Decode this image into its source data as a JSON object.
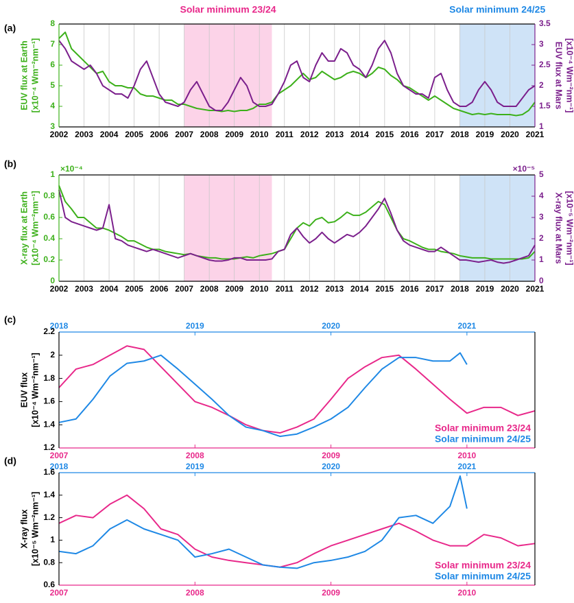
{
  "chart_data": [
    {
      "type": "line",
      "panel_label": "(a)",
      "ylabel": [
        "EUV flux at Earth",
        "[x10⁻⁴ Wm⁻²nm⁻¹]"
      ],
      "y2label": [
        "EUV flux at Mars",
        "[x10⁻⁴ Wm⁻²nm⁻¹]"
      ],
      "xlim": [
        2002,
        2021
      ],
      "xticks": [
        2002,
        2003,
        2004,
        2005,
        2006,
        2007,
        2008,
        2009,
        2010,
        2011,
        2012,
        2013,
        2014,
        2015,
        2016,
        2017,
        2018,
        2019,
        2020,
        2021
      ],
      "ylim": [
        3,
        8
      ],
      "yticks": [
        3,
        4,
        5,
        6,
        7,
        8
      ],
      "y2lim": [
        1,
        3.5
      ],
      "y2ticks": [
        1,
        1.5,
        2,
        2.5,
        3,
        3.5
      ],
      "grid": true,
      "shaded": [
        {
          "from": 2007,
          "to": 2010.5,
          "color": "#fcd3e8",
          "label": "Solar minimum 23/24",
          "label_color": "#e8288a"
        },
        {
          "from": 2018,
          "to": 2021,
          "color": "#cfe3f7",
          "label": "Solar minimum 24/25",
          "label_color": "#1e88e5"
        }
      ],
      "x": [
        2002,
        2002.25,
        2002.5,
        2002.75,
        2003,
        2003.25,
        2003.5,
        2003.75,
        2004,
        2004.25,
        2004.5,
        2004.75,
        2005,
        2005.25,
        2005.5,
        2005.75,
        2006,
        2006.25,
        2006.5,
        2006.75,
        2007,
        2007.25,
        2007.5,
        2007.75,
        2008,
        2008.25,
        2008.5,
        2008.75,
        2009,
        2009.25,
        2009.5,
        2009.75,
        2010,
        2010.25,
        2010.5,
        2010.75,
        2011,
        2011.25,
        2011.5,
        2011.75,
        2012,
        2012.25,
        2012.5,
        2012.75,
        2013,
        2013.25,
        2013.5,
        2013.75,
        2014,
        2014.25,
        2014.5,
        2014.75,
        2015,
        2015.25,
        2015.5,
        2015.75,
        2016,
        2016.25,
        2016.5,
        2016.75,
        2017,
        2017.25,
        2017.5,
        2017.75,
        2018,
        2018.25,
        2018.5,
        2018.75,
        2019,
        2019.25,
        2019.5,
        2019.75,
        2020,
        2020.25,
        2020.5,
        2020.75,
        2021
      ],
      "series": [
        {
          "color": "#3cb01a",
          "values": [
            7.3,
            7.6,
            6.8,
            6.5,
            6.2,
            5.9,
            5.6,
            5.7,
            5.2,
            5.0,
            5.0,
            4.9,
            4.9,
            4.6,
            4.5,
            4.5,
            4.4,
            4.3,
            4.3,
            4.1,
            4.1,
            4.0,
            3.9,
            3.85,
            3.8,
            3.8,
            3.75,
            3.8,
            3.75,
            3.8,
            3.8,
            3.9,
            4.1,
            4.1,
            4.2,
            4.6,
            4.8,
            5.0,
            5.3,
            5.6,
            5.3,
            5.4,
            5.7,
            5.5,
            5.3,
            5.4,
            5.6,
            5.7,
            5.6,
            5.4,
            5.6,
            5.9,
            5.8,
            5.5,
            5.3,
            5.0,
            4.9,
            4.7,
            4.5,
            4.3,
            4.5,
            4.3,
            4.1,
            3.9,
            3.8,
            3.7,
            3.6,
            3.65,
            3.6,
            3.65,
            3.6,
            3.6,
            3.6,
            3.55,
            3.6,
            3.8,
            4.2
          ]
        },
        {
          "color": "#7b1f8c",
          "axis": "y2",
          "values": [
            3.1,
            2.9,
            2.6,
            2.5,
            2.4,
            2.5,
            2.3,
            2.0,
            1.9,
            1.8,
            1.8,
            1.7,
            2.0,
            2.4,
            2.6,
            2.2,
            1.8,
            1.6,
            1.55,
            1.5,
            1.6,
            1.9,
            2.1,
            1.8,
            1.5,
            1.4,
            1.4,
            1.6,
            1.9,
            2.2,
            2.0,
            1.6,
            1.5,
            1.5,
            1.55,
            1.8,
            2.1,
            2.5,
            2.6,
            2.2,
            2.1,
            2.5,
            2.8,
            2.6,
            2.6,
            2.9,
            2.8,
            2.5,
            2.4,
            2.2,
            2.5,
            2.9,
            3.1,
            2.8,
            2.3,
            2.0,
            1.9,
            1.8,
            1.8,
            1.7,
            2.2,
            2.3,
            1.9,
            1.6,
            1.5,
            1.5,
            1.6,
            1.9,
            2.1,
            1.9,
            1.6,
            1.5,
            1.5,
            1.5,
            1.7,
            1.9,
            2.0
          ]
        }
      ]
    },
    {
      "type": "line",
      "panel_label": "(b)",
      "ylabel": [
        "X-ray flux at Earth",
        "[x10⁻⁴ Wm⁻²nm⁻¹]"
      ],
      "y2label": [
        "X-ray flux at Mars",
        "[x10⁻⁵ Wm⁻²nm⁻¹]"
      ],
      "y_multiplier": "×10⁻⁴",
      "y2_multiplier": "×10⁻⁵",
      "xlim": [
        2002,
        2021
      ],
      "xticks": [
        2002,
        2003,
        2004,
        2005,
        2006,
        2007,
        2008,
        2009,
        2010,
        2011,
        2012,
        2013,
        2014,
        2015,
        2016,
        2017,
        2018,
        2019,
        2020,
        2021
      ],
      "ylim": [
        0,
        1
      ],
      "yticks": [
        0,
        0.2,
        0.4,
        0.6,
        0.8,
        1
      ],
      "y2lim": [
        0,
        5
      ],
      "y2ticks": [
        0,
        1,
        2,
        3,
        4,
        5
      ],
      "grid": true,
      "shaded": [
        {
          "from": 2007,
          "to": 2010.5,
          "color": "#fcd3e8"
        },
        {
          "from": 2018,
          "to": 2021,
          "color": "#cfe3f7"
        }
      ],
      "x": [
        2002,
        2002.25,
        2002.5,
        2002.75,
        2003,
        2003.25,
        2003.5,
        2003.75,
        2004,
        2004.25,
        2004.5,
        2004.75,
        2005,
        2005.25,
        2005.5,
        2005.75,
        2006,
        2006.25,
        2006.5,
        2006.75,
        2007,
        2007.25,
        2007.5,
        2007.75,
        2008,
        2008.25,
        2008.5,
        2008.75,
        2009,
        2009.25,
        2009.5,
        2009.75,
        2010,
        2010.25,
        2010.5,
        2010.75,
        2011,
        2011.25,
        2011.5,
        2011.75,
        2012,
        2012.25,
        2012.5,
        2012.75,
        2013,
        2013.25,
        2013.5,
        2013.75,
        2014,
        2014.25,
        2014.5,
        2014.75,
        2015,
        2015.25,
        2015.5,
        2015.75,
        2016,
        2016.25,
        2016.5,
        2016.75,
        2017,
        2017.25,
        2017.5,
        2017.75,
        2018,
        2018.25,
        2018.5,
        2018.75,
        2019,
        2019.25,
        2019.5,
        2019.75,
        2020,
        2020.25,
        2020.5,
        2020.75,
        2021
      ],
      "series": [
        {
          "color": "#3cb01a",
          "values": [
            0.9,
            0.75,
            0.68,
            0.6,
            0.6,
            0.55,
            0.5,
            0.5,
            0.48,
            0.45,
            0.42,
            0.38,
            0.38,
            0.35,
            0.32,
            0.3,
            0.3,
            0.28,
            0.27,
            0.26,
            0.25,
            0.26,
            0.24,
            0.23,
            0.22,
            0.22,
            0.21,
            0.21,
            0.21,
            0.22,
            0.23,
            0.22,
            0.24,
            0.25,
            0.26,
            0.28,
            0.3,
            0.4,
            0.5,
            0.55,
            0.52,
            0.58,
            0.6,
            0.55,
            0.56,
            0.6,
            0.65,
            0.62,
            0.62,
            0.65,
            0.7,
            0.75,
            0.72,
            0.6,
            0.48,
            0.4,
            0.38,
            0.35,
            0.32,
            0.3,
            0.3,
            0.28,
            0.27,
            0.26,
            0.24,
            0.23,
            0.22,
            0.22,
            0.22,
            0.21,
            0.21,
            0.21,
            0.21,
            0.21,
            0.21,
            0.22,
            0.28
          ]
        },
        {
          "color": "#7b1f8c",
          "axis": "y2",
          "values": [
            4.3,
            3.0,
            2.8,
            2.7,
            2.6,
            2.5,
            2.4,
            2.5,
            3.6,
            2.0,
            1.9,
            1.7,
            1.6,
            1.5,
            1.4,
            1.5,
            1.4,
            1.3,
            1.2,
            1.1,
            1.2,
            1.3,
            1.2,
            1.1,
            1.0,
            0.95,
            0.95,
            1.0,
            1.1,
            1.1,
            1.0,
            1.0,
            1.0,
            1.0,
            1.05,
            1.4,
            1.5,
            2.2,
            2.5,
            2.1,
            1.8,
            2.0,
            2.3,
            2.0,
            1.8,
            2.0,
            2.2,
            2.1,
            2.3,
            2.6,
            3.0,
            3.4,
            3.9,
            3.2,
            2.4,
            1.9,
            1.7,
            1.6,
            1.5,
            1.4,
            1.4,
            1.6,
            1.4,
            1.2,
            1.0,
            1.0,
            0.95,
            0.9,
            0.95,
            1.0,
            0.9,
            0.85,
            0.9,
            1.0,
            1.1,
            1.2,
            1.7
          ]
        }
      ]
    },
    {
      "type": "line",
      "panel_label": "(c)",
      "ylabel": [
        "EUV flux",
        "[x10⁻⁴ Wm⁻²nm⁻¹]"
      ],
      "xlim": [
        2007,
        2010.5
      ],
      "xticks": [
        2007,
        2008,
        2009,
        2010
      ],
      "x2lim": [
        2018,
        2021.5
      ],
      "x2ticks": [
        2018,
        2019,
        2020,
        2021
      ],
      "ylim": [
        1.2,
        2.2
      ],
      "yticks": [
        1.2,
        1.4,
        1.6,
        1.8,
        2,
        2.2
      ],
      "legend": "lower right",
      "series": [
        {
          "name": "Solar minimum 23/24",
          "color": "#e8288a",
          "x": [
            2007,
            2007.125,
            2007.25,
            2007.375,
            2007.5,
            2007.625,
            2007.75,
            2007.875,
            2008,
            2008.125,
            2008.25,
            2008.375,
            2008.5,
            2008.625,
            2008.75,
            2008.875,
            2009,
            2009.125,
            2009.25,
            2009.375,
            2009.5,
            2009.625,
            2009.75,
            2009.875,
            2010,
            2010.125,
            2010.25,
            2010.375,
            2010.5
          ],
          "values": [
            1.72,
            1.88,
            1.92,
            2.0,
            2.08,
            2.05,
            1.9,
            1.75,
            1.6,
            1.55,
            1.48,
            1.4,
            1.35,
            1.33,
            1.38,
            1.45,
            1.62,
            1.8,
            1.9,
            1.98,
            2.0,
            1.88,
            1.75,
            1.62,
            1.5,
            1.55,
            1.55,
            1.48,
            1.52
          ]
        },
        {
          "name": "Solar minimum 24/25",
          "color": "#1e88e5",
          "xaxis": "x2",
          "x": [
            2018,
            2018.125,
            2018.25,
            2018.375,
            2018.5,
            2018.625,
            2018.75,
            2018.875,
            2019,
            2019.125,
            2019.25,
            2019.375,
            2019.5,
            2019.625,
            2019.75,
            2019.875,
            2020,
            2020.125,
            2020.25,
            2020.375,
            2020.5,
            2020.625,
            2020.75,
            2020.875,
            2020.95,
            2021
          ],
          "values": [
            1.42,
            1.45,
            1.62,
            1.82,
            1.93,
            1.95,
            2.0,
            1.88,
            1.75,
            1.62,
            1.48,
            1.38,
            1.35,
            1.3,
            1.32,
            1.38,
            1.45,
            1.55,
            1.72,
            1.88,
            1.98,
            1.98,
            1.95,
            1.95,
            2.02,
            1.92
          ]
        }
      ]
    },
    {
      "type": "line",
      "panel_label": "(d)",
      "ylabel": [
        "X-ray flux",
        "[x10⁻⁵ Wm⁻²nm⁻¹]"
      ],
      "xlim": [
        2007,
        2010.5
      ],
      "xticks": [
        2007,
        2008,
        2009,
        2010
      ],
      "x2lim": [
        2018,
        2021.5
      ],
      "x2ticks": [
        2018,
        2019,
        2020,
        2021
      ],
      "ylim": [
        0.6,
        1.6
      ],
      "yticks": [
        0.6,
        0.8,
        1,
        1.2,
        1.4,
        1.6
      ],
      "legend": "lower right",
      "series": [
        {
          "name": "Solar minimum 23/24",
          "color": "#e8288a",
          "x": [
            2007,
            2007.125,
            2007.25,
            2007.375,
            2007.5,
            2007.625,
            2007.75,
            2007.875,
            2008,
            2008.125,
            2008.25,
            2008.375,
            2008.5,
            2008.625,
            2008.75,
            2008.875,
            2009,
            2009.125,
            2009.25,
            2009.375,
            2009.5,
            2009.625,
            2009.75,
            2009.875,
            2010,
            2010.125,
            2010.25,
            2010.375,
            2010.5
          ],
          "values": [
            1.15,
            1.22,
            1.2,
            1.32,
            1.4,
            1.28,
            1.1,
            1.05,
            0.92,
            0.85,
            0.82,
            0.8,
            0.78,
            0.76,
            0.8,
            0.88,
            0.95,
            1.0,
            1.05,
            1.1,
            1.15,
            1.08,
            1.0,
            0.95,
            0.95,
            1.05,
            1.02,
            0.95,
            0.97
          ]
        },
        {
          "name": "Solar minimum 24/25",
          "color": "#1e88e5",
          "xaxis": "x2",
          "x": [
            2018,
            2018.125,
            2018.25,
            2018.375,
            2018.5,
            2018.625,
            2018.75,
            2018.875,
            2019,
            2019.125,
            2019.25,
            2019.375,
            2019.5,
            2019.625,
            2019.75,
            2019.875,
            2020,
            2020.125,
            2020.25,
            2020.375,
            2020.5,
            2020.625,
            2020.75,
            2020.875,
            2020.95,
            2021
          ],
          "values": [
            0.9,
            0.88,
            0.95,
            1.1,
            1.18,
            1.1,
            1.05,
            1.0,
            0.85,
            0.88,
            0.92,
            0.85,
            0.78,
            0.76,
            0.75,
            0.8,
            0.82,
            0.85,
            0.9,
            1.0,
            1.2,
            1.22,
            1.15,
            1.3,
            1.57,
            1.28
          ]
        }
      ]
    }
  ]
}
